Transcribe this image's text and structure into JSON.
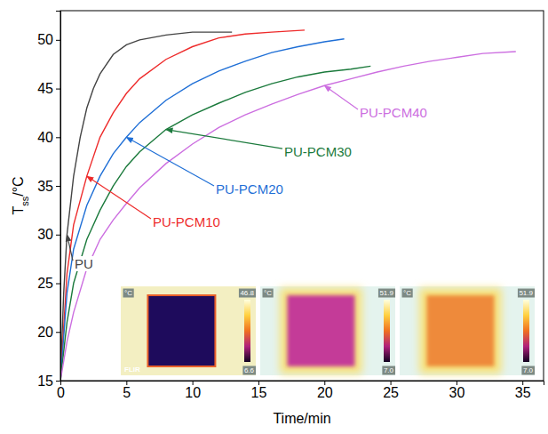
{
  "chart_data": {
    "type": "line",
    "xlabel": "Time/min",
    "ylabel": [
      "T",
      "ss",
      "/°C"
    ],
    "xlim": [
      0,
      36.6
    ],
    "ylim": [
      15,
      53
    ],
    "xticks": [
      0,
      5,
      10,
      15,
      20,
      25,
      30,
      35
    ],
    "yticks": [
      15,
      20,
      25,
      30,
      35,
      40,
      45,
      50
    ],
    "grid": false,
    "series": [
      {
        "name": "PU",
        "color": "#444444",
        "x": [
          0,
          0.25,
          0.5,
          1,
          1.5,
          2,
          2.5,
          3,
          4,
          5,
          6,
          8,
          10,
          12,
          13
        ],
        "values": [
          15,
          24,
          30,
          36,
          40,
          43,
          45,
          46.5,
          48.5,
          49.5,
          50,
          50.5,
          50.8,
          50.8,
          50.8
        ]
      },
      {
        "name": "PU-PCM10",
        "color": "#ee2b2b",
        "x": [
          0,
          0.5,
          1,
          2,
          3,
          4,
          5,
          6,
          8,
          10,
          12,
          14,
          16,
          18.5
        ],
        "values": [
          15,
          26,
          31,
          36,
          40,
          42.5,
          44.5,
          46,
          48,
          49.3,
          50.2,
          50.6,
          50.8,
          51
        ]
      },
      {
        "name": "PU-PCM20",
        "color": "#1f6fd6",
        "x": [
          0,
          0.5,
          1,
          2,
          3,
          4,
          5,
          6,
          8,
          10,
          12,
          14,
          16,
          18,
          20,
          21.5
        ],
        "values": [
          15,
          24,
          28.5,
          33,
          36,
          38.3,
          40,
          41.5,
          43.8,
          45.5,
          46.8,
          47.8,
          48.7,
          49.3,
          49.8,
          50.1
        ]
      },
      {
        "name": "PU-PCM30",
        "color": "#1b7a3c",
        "x": [
          0,
          0.5,
          1,
          2,
          3,
          4,
          5,
          6,
          8,
          10,
          12,
          14,
          16,
          18,
          20,
          22,
          23.5
        ],
        "values": [
          15,
          21,
          25,
          29.5,
          32.5,
          35,
          37,
          38.5,
          40.8,
          42.3,
          43.5,
          44.6,
          45.5,
          46.2,
          46.7,
          47,
          47.3
        ]
      },
      {
        "name": "PU-PCM40",
        "color": "#cc6ee0",
        "x": [
          0,
          0.5,
          1,
          2,
          3,
          4,
          5,
          6,
          8,
          10,
          12,
          14,
          16,
          18,
          20,
          22,
          24,
          26,
          28,
          30,
          32,
          34.5
        ],
        "values": [
          15,
          19,
          22,
          26.5,
          29.5,
          31.5,
          33.2,
          34.8,
          37.3,
          39.3,
          41,
          42.3,
          43.4,
          44.4,
          45.3,
          46,
          46.7,
          47.3,
          47.8,
          48.2,
          48.6,
          48.8
        ]
      }
    ],
    "insets": [
      {
        "unit": "°C",
        "max": "46.8",
        "min": "6.6",
        "logo": "FLIR"
      },
      {
        "unit": "°C",
        "max": "51.9",
        "min": "7.0"
      },
      {
        "unit": "°C",
        "max": "51.9",
        "min": "7.0"
      }
    ]
  }
}
